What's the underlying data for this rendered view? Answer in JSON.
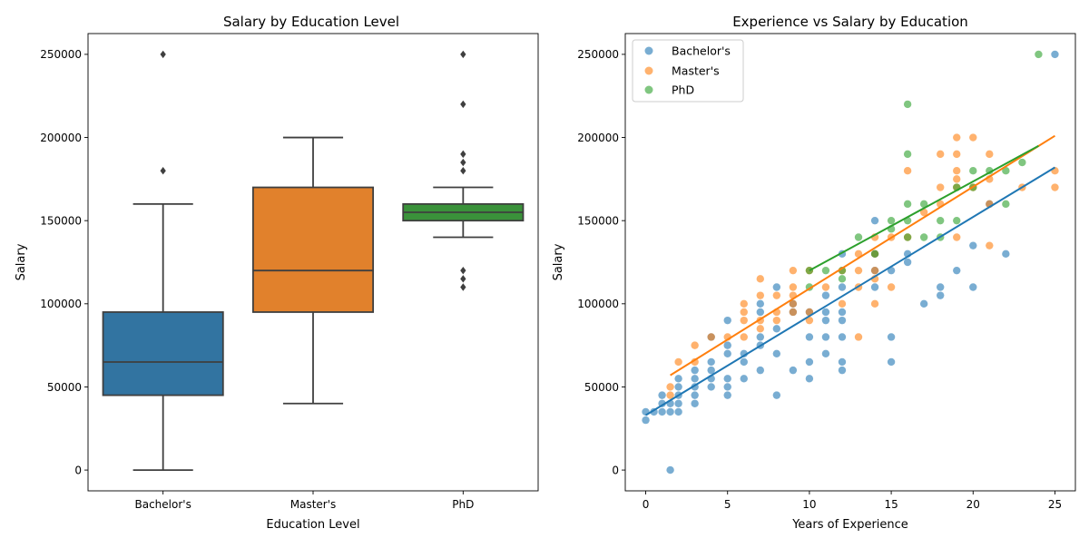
{
  "colors": {
    "bachelor": "#1f77b4",
    "master": "#ff7f0e",
    "phd": "#2ca02c",
    "box_bachelor": "#3274a1",
    "box_master": "#e1812c",
    "box_phd": "#3a923a",
    "box_line": "#3f3f3f"
  },
  "chart_data": [
    {
      "type": "box",
      "title": "Salary by Education Level",
      "xlabel": "Education Level",
      "ylabel": "Salary",
      "categories": [
        "Bachelor's",
        "Master's",
        "PhD"
      ],
      "ylim": [
        -12500,
        262500
      ],
      "yticks": [
        0,
        50000,
        100000,
        150000,
        200000,
        250000
      ],
      "ytick_labels": [
        "0",
        "50000",
        "100000",
        "150000",
        "200000",
        "250000"
      ],
      "boxes": [
        {
          "name": "Bachelor's",
          "whisker_low": 0,
          "q1": 45000,
          "median": 65000,
          "q3": 95000,
          "whisker_high": 160000,
          "outliers": [
            180000,
            250000
          ]
        },
        {
          "name": "Master's",
          "whisker_low": 40000,
          "q1": 95000,
          "median": 120000,
          "q3": 170000,
          "whisker_high": 200000,
          "outliers": []
        },
        {
          "name": "PhD",
          "whisker_low": 140000,
          "q1": 150000,
          "median": 155000,
          "q3": 160000,
          "whisker_high": 170000,
          "outliers": [
            110000,
            115000,
            120000,
            180000,
            185000,
            190000,
            220000,
            250000
          ]
        }
      ]
    },
    {
      "type": "scatter",
      "title": "Experience vs Salary by Education",
      "xlabel": "Years of Experience",
      "ylabel": "Salary",
      "xlim": [
        -1.25,
        26.25
      ],
      "ylim": [
        -12500,
        262500
      ],
      "xticks": [
        0,
        5,
        10,
        15,
        20,
        25
      ],
      "xtick_labels": [
        "0",
        "5",
        "10",
        "15",
        "20",
        "25"
      ],
      "yticks": [
        0,
        50000,
        100000,
        150000,
        200000,
        250000
      ],
      "ytick_labels": [
        "0",
        "50000",
        "100000",
        "150000",
        "200000",
        "250000"
      ],
      "legend_position": "top-left",
      "series": [
        {
          "name": "Bachelor's",
          "trend": [
            [
              0,
              33000
            ],
            [
              25,
              182000
            ]
          ],
          "points": [
            [
              0,
              30000
            ],
            [
              0,
              35000
            ],
            [
              0.5,
              35000
            ],
            [
              1,
              35000
            ],
            [
              1,
              40000
            ],
            [
              1,
              45000
            ],
            [
              1.5,
              0
            ],
            [
              1.5,
              35000
            ],
            [
              1.5,
              40000
            ],
            [
              2,
              35000
            ],
            [
              2,
              40000
            ],
            [
              2,
              45000
            ],
            [
              2,
              50000
            ],
            [
              2,
              55000
            ],
            [
              3,
              40000
            ],
            [
              3,
              45000
            ],
            [
              3,
              50000
            ],
            [
              3,
              55000
            ],
            [
              3,
              60000
            ],
            [
              4,
              50000
            ],
            [
              4,
              55000
            ],
            [
              4,
              60000
            ],
            [
              4,
              65000
            ],
            [
              4,
              80000
            ],
            [
              5,
              45000
            ],
            [
              5,
              50000
            ],
            [
              5,
              55000
            ],
            [
              5,
              70000
            ],
            [
              5,
              75000
            ],
            [
              5,
              90000
            ],
            [
              6,
              55000
            ],
            [
              6,
              65000
            ],
            [
              6,
              70000
            ],
            [
              7,
              60000
            ],
            [
              7,
              75000
            ],
            [
              7,
              80000
            ],
            [
              7,
              95000
            ],
            [
              7,
              100000
            ],
            [
              8,
              45000
            ],
            [
              8,
              70000
            ],
            [
              8,
              85000
            ],
            [
              8,
              110000
            ],
            [
              9,
              60000
            ],
            [
              9,
              95000
            ],
            [
              9,
              100000
            ],
            [
              10,
              55000
            ],
            [
              10,
              65000
            ],
            [
              10,
              80000
            ],
            [
              10,
              95000
            ],
            [
              11,
              70000
            ],
            [
              11,
              80000
            ],
            [
              11,
              90000
            ],
            [
              11,
              95000
            ],
            [
              11,
              105000
            ],
            [
              12,
              60000
            ],
            [
              12,
              65000
            ],
            [
              12,
              80000
            ],
            [
              12,
              90000
            ],
            [
              12,
              95000
            ],
            [
              12,
              110000
            ],
            [
              12,
              130000
            ],
            [
              14,
              110000
            ],
            [
              14,
              120000
            ],
            [
              14,
              130000
            ],
            [
              14,
              150000
            ],
            [
              15,
              65000
            ],
            [
              15,
              80000
            ],
            [
              15,
              120000
            ],
            [
              16,
              125000
            ],
            [
              16,
              130000
            ],
            [
              17,
              100000
            ],
            [
              18,
              105000
            ],
            [
              18,
              110000
            ],
            [
              19,
              120000
            ],
            [
              20,
              110000
            ],
            [
              20,
              135000
            ],
            [
              21,
              160000
            ],
            [
              22,
              130000
            ],
            [
              25,
              250000
            ]
          ]
        },
        {
          "name": "Master's",
          "trend": [
            [
              1.5,
              57000
            ],
            [
              25,
              201000
            ]
          ],
          "points": [
            [
              1.5,
              45000
            ],
            [
              1.5,
              50000
            ],
            [
              2,
              65000
            ],
            [
              3,
              65000
            ],
            [
              3,
              75000
            ],
            [
              4,
              80000
            ],
            [
              5,
              80000
            ],
            [
              6,
              80000
            ],
            [
              6,
              90000
            ],
            [
              6,
              95000
            ],
            [
              6,
              100000
            ],
            [
              7,
              85000
            ],
            [
              7,
              90000
            ],
            [
              7,
              105000
            ],
            [
              7,
              115000
            ],
            [
              8,
              90000
            ],
            [
              8,
              95000
            ],
            [
              8,
              105000
            ],
            [
              9,
              95000
            ],
            [
              9,
              100000
            ],
            [
              9,
              105000
            ],
            [
              9,
              110000
            ],
            [
              9,
              120000
            ],
            [
              10,
              90000
            ],
            [
              10,
              95000
            ],
            [
              10,
              120000
            ],
            [
              11,
              110000
            ],
            [
              12,
              100000
            ],
            [
              12,
              120000
            ],
            [
              13,
              80000
            ],
            [
              13,
              110000
            ],
            [
              13,
              120000
            ],
            [
              13,
              130000
            ],
            [
              14,
              100000
            ],
            [
              14,
              115000
            ],
            [
              14,
              120000
            ],
            [
              14,
              130000
            ],
            [
              14,
              140000
            ],
            [
              15,
              110000
            ],
            [
              15,
              140000
            ],
            [
              16,
              140000
            ],
            [
              16,
              180000
            ],
            [
              17,
              155000
            ],
            [
              18,
              160000
            ],
            [
              18,
              170000
            ],
            [
              18,
              190000
            ],
            [
              19,
              140000
            ],
            [
              19,
              170000
            ],
            [
              19,
              175000
            ],
            [
              19,
              180000
            ],
            [
              19,
              190000
            ],
            [
              19,
              200000
            ],
            [
              20,
              170000
            ],
            [
              20,
              200000
            ],
            [
              21,
              135000
            ],
            [
              21,
              160000
            ],
            [
              21,
              175000
            ],
            [
              21,
              190000
            ],
            [
              23,
              170000
            ],
            [
              25,
              170000
            ],
            [
              25,
              180000
            ]
          ]
        },
        {
          "name": "PhD",
          "trend": [
            [
              10,
              120000
            ],
            [
              24,
              195000
            ]
          ],
          "points": [
            [
              10,
              110000
            ],
            [
              10,
              120000
            ],
            [
              11,
              120000
            ],
            [
              12,
              115000
            ],
            [
              12,
              120000
            ],
            [
              13,
              140000
            ],
            [
              14,
              130000
            ],
            [
              15,
              145000
            ],
            [
              15,
              150000
            ],
            [
              16,
              140000
            ],
            [
              16,
              150000
            ],
            [
              16,
              160000
            ],
            [
              16,
              190000
            ],
            [
              16,
              220000
            ],
            [
              17,
              140000
            ],
            [
              17,
              160000
            ],
            [
              18,
              140000
            ],
            [
              18,
              150000
            ],
            [
              19,
              150000
            ],
            [
              19,
              170000
            ],
            [
              20,
              170000
            ],
            [
              20,
              180000
            ],
            [
              21,
              180000
            ],
            [
              22,
              160000
            ],
            [
              22,
              180000
            ],
            [
              23,
              185000
            ],
            [
              24,
              250000
            ]
          ]
        }
      ]
    }
  ]
}
